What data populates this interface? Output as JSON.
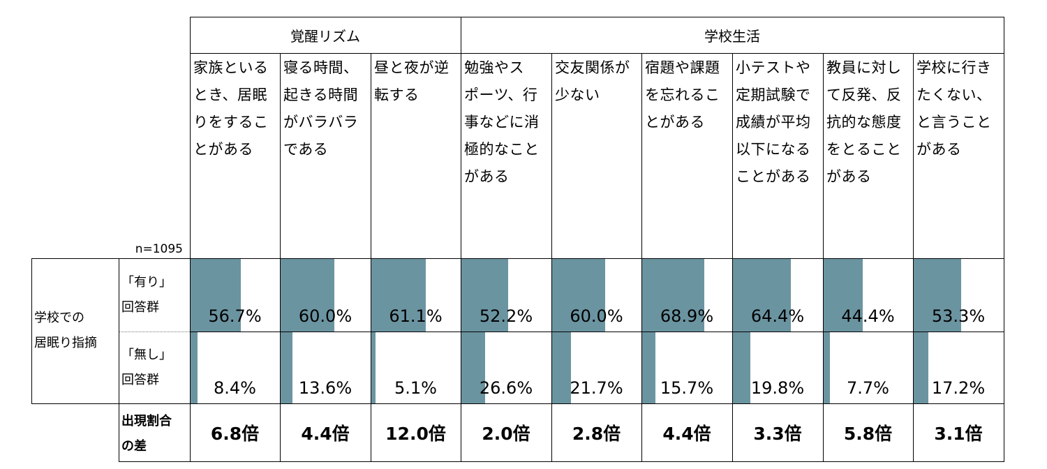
{
  "chart_data": {
    "type": "table",
    "sample_size_label": "n=1095",
    "groups": [
      {
        "label": "覚醒リズム",
        "span": 3
      },
      {
        "label": "学校生活",
        "span": 6
      }
    ],
    "categories": [
      "家族といるとき、居眠りをすることがある",
      "寝る時間、起きる時間がバラバラである",
      "昼と夜が逆転する",
      "勉強やスポーツ、行事などに消極的なことがある",
      "交友関係が少ない",
      "宿題や課題を忘れることがある",
      "小テストや定期試験で成績が平均以下になることがある",
      "教員に対して反発、反抗的な態度をとることがある",
      "学校に行きたくない、と言うことがある"
    ],
    "category_lines": [
      "家族といる\nとき、居眠\nりをするこ\nとがある",
      "寝る時間、\n起きる時間\nがバラバラ\nである",
      "昼と夜が逆\n転する",
      "勉強やス\nポーツ、行\n事などに消\n極的なこと\nがある",
      "交友関係が\n少ない",
      "宿題や課題\nを忘れるこ\nとがある",
      "小テストや\n定期試験で\n成績が平均\n以下になる\nことがある",
      "教員に対し\nて反発、反\n抗的な態度\nをとること\nがある",
      "学校に行き\nたくない、\nと言うこと\nがある"
    ],
    "row_group_label": "学校での\n居眠り指摘",
    "series": [
      {
        "name": "「有り」\n回答群",
        "values": [
          56.7,
          60.0,
          61.1,
          52.2,
          60.0,
          68.9,
          64.4,
          44.4,
          53.3
        ],
        "labels": [
          "56.7%",
          "60.0%",
          "61.1%",
          "52.2%",
          "60.0%",
          "68.9%",
          "64.4%",
          "44.4%",
          "53.3%"
        ]
      },
      {
        "name": "「無し」\n回答群",
        "values": [
          8.4,
          13.6,
          5.1,
          26.6,
          21.7,
          15.7,
          19.8,
          7.7,
          17.2
        ],
        "labels": [
          "8.4%",
          "13.6%",
          "5.1%",
          "26.6%",
          "21.7%",
          "15.7%",
          "19.8%",
          "7.7%",
          "17.2%"
        ]
      }
    ],
    "ratio_row": {
      "label": "出現割合\nの差",
      "values": [
        "6.8倍",
        "4.4倍",
        "12.0倍",
        "2.0倍",
        "2.8倍",
        "4.4倍",
        "3.3倍",
        "5.8倍",
        "3.1倍"
      ]
    },
    "ylim": [
      0,
      100
    ],
    "colors": {
      "bar": "#6b94a1"
    }
  }
}
